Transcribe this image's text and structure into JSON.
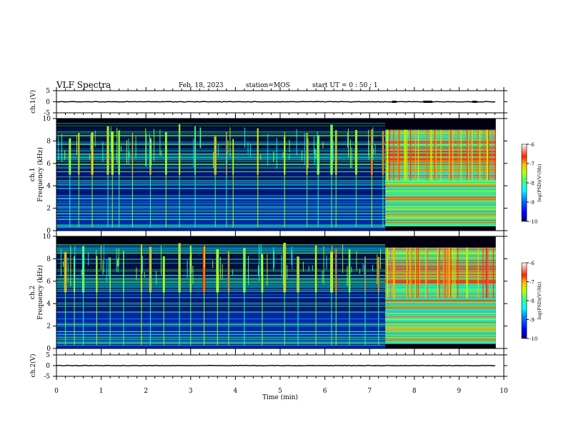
{
  "header": {
    "title": "VLF Spectra",
    "date": "Feb. 18, 2023",
    "station": "station=MOS",
    "start": "start  UT =   0 : 50 : 1"
  },
  "chart_data": {
    "type": "heatmap",
    "title": "VLF Spectra",
    "xlabel": "Time  (min)",
    "x_ticks": [
      0,
      1,
      2,
      3,
      4,
      5,
      6,
      7,
      8,
      9,
      10
    ],
    "xlim": [
      0,
      10
    ],
    "data_end_min": 9.82,
    "strip_burst_min": [
      {
        "start": 7.5,
        "end": 7.6
      },
      {
        "start": 8.2,
        "end": 8.4
      },
      {
        "start": 9.3,
        "end": 9.4
      }
    ],
    "waveform_panels": [
      {
        "ylabel": "ch.1(V)",
        "y_ticks": [
          5,
          0,
          -5
        ],
        "ylim": [
          -5,
          5
        ]
      },
      {
        "ylabel": "ch.2(V)",
        "y_ticks": [
          5,
          0,
          -5
        ],
        "ylim": [
          -5,
          5
        ]
      }
    ],
    "spectrogram_panels": [
      {
        "ylabel_channel": "ch.1",
        "ylabel": "Frequency  (kHz)",
        "y_ticks": [
          0,
          2,
          4,
          6,
          8,
          10
        ],
        "ylim": [
          0,
          10
        ],
        "mode_change_min": 7.35,
        "bursts_min": [
          0.3,
          0.5,
          0.8,
          1.15,
          1.25,
          1.4,
          1.7,
          2.1,
          2.45,
          2.75,
          3.1,
          3.55,
          3.8,
          3.95,
          4.5,
          5.1,
          5.6,
          5.85,
          6.15,
          6.25,
          6.7,
          7.05,
          7.3
        ]
      },
      {
        "ylabel_channel": "ch.2",
        "ylabel": "Frequency  (kHz)",
        "y_ticks": [
          0,
          2,
          4,
          6,
          8,
          10
        ],
        "ylim": [
          0,
          10
        ],
        "mode_change_min": 7.35,
        "bursts_min": [
          0.2,
          0.4,
          0.6,
          0.9,
          1.2,
          1.5,
          1.9,
          2.1,
          2.4,
          2.75,
          3.0,
          3.3,
          3.6,
          3.85,
          4.2,
          4.6,
          5.1,
          5.4,
          5.8,
          6.15,
          6.25,
          6.55,
          6.9,
          7.2
        ]
      }
    ],
    "colorbar": {
      "label": "log(PSD)(V²/Hz)",
      "ticks": [
        -6,
        -7,
        -8,
        -9,
        -10
      ],
      "range": [
        -10,
        -6
      ],
      "colors": [
        "#000080",
        "#0000ff",
        "#0080ff",
        "#00ffff",
        "#80ff80",
        "#ffff00",
        "#ff8000",
        "#ff0000",
        "#ffffff"
      ]
    }
  }
}
